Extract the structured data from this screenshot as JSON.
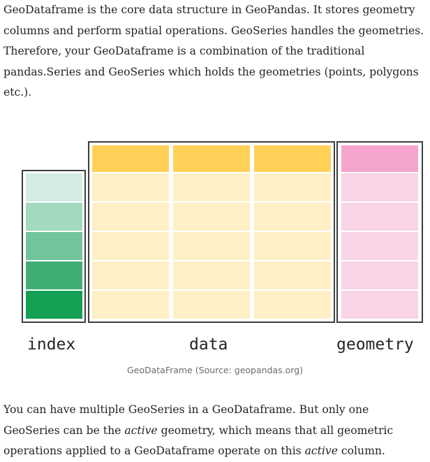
{
  "intro": {
    "text": "GeoDataframe is the core data structure in GeoPandas. It stores geometry columns and perform spatial operations. GeoSeries handles the geometries. Therefore, your GeoDataframe is a combination of the traditional pandas.Series and GeoSeries which holds the geometries (points, polygons etc.)."
  },
  "figure": {
    "labels": {
      "index": "index",
      "data": "data",
      "geometry": "geometry"
    },
    "caption": "GeoDataFrame (Source: geopandas.org)",
    "colors": {
      "index_cells": [
        "#d3ebe1",
        "#a3d9bf",
        "#72c49a",
        "#40ae74",
        "#14a055"
      ],
      "data_header": "#ffd157",
      "data_cell": "#feefc5",
      "geometry_header": "#f5a5cd",
      "geometry_cell": "#f9d3e6",
      "frame": "#3d3d3d"
    }
  },
  "outro": {
    "part1": "You can have multiple GeoSeries in a GeoDataframe. But only one GeoSeries can be the ",
    "em1": "active",
    "part2": " geometry, which means that all geometric operations applied to a GeoDataframe operate on this ",
    "em2": "active",
    "part3": " column."
  }
}
